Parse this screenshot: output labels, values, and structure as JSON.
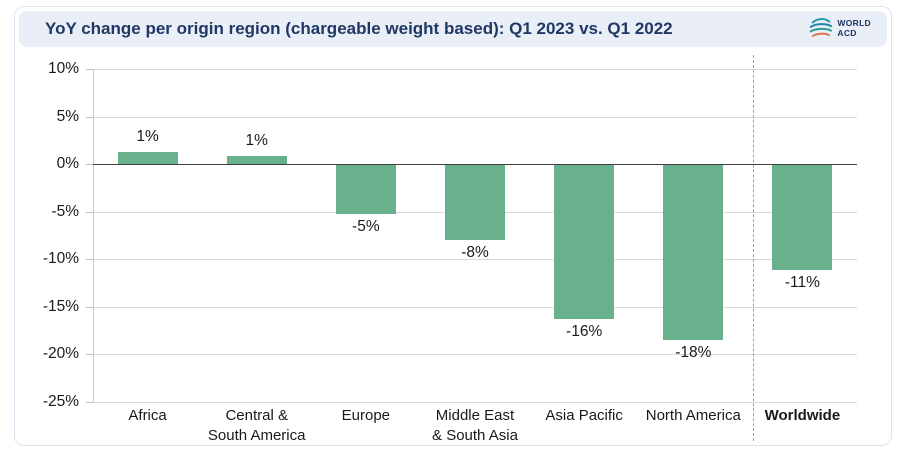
{
  "header": {
    "title": "YoY change per origin region (chargeable weight based): Q1 2023 vs. Q1 2022",
    "logo": {
      "line1": "WORLD",
      "line2": "ACD"
    }
  },
  "chart_data": {
    "type": "bar",
    "title": "YoY change per origin region (chargeable weight based): Q1 2023 vs. Q1 2022",
    "categories": [
      "Africa",
      "Central &\nSouth America",
      "Europe",
      "Middle East\n& South Asia",
      "Asia Pacific",
      "North America",
      "Worldwide"
    ],
    "values": [
      1.3,
      0.8,
      -5.2,
      -7.9,
      -16.2,
      -18.4,
      -11.0
    ],
    "data_labels": [
      "1%",
      "1%",
      "-5%",
      "-8%",
      "-16%",
      "-18%",
      "-11%"
    ],
    "bold_categories": [
      "Worldwide"
    ],
    "y_ticks": [
      {
        "label": "10%",
        "value": 10
      },
      {
        "label": "5%",
        "value": 5
      },
      {
        "label": "0%",
        "value": 0
      },
      {
        "label": "-5%",
        "value": -5
      },
      {
        "label": "-10%",
        "value": -10
      },
      {
        "label": "-15%",
        "value": -15
      },
      {
        "label": "-20%",
        "value": -20
      },
      {
        "label": "-25%",
        "value": -25
      }
    ],
    "ylim": [
      -25,
      10
    ],
    "grid": true,
    "legend": "none",
    "separator_before_category": "Worldwide",
    "colors": {
      "bar": "#69b18d",
      "grid": "#d9d9d9",
      "zero_line": "#404040",
      "separator": "#9aa0a8",
      "title": "#1f3864",
      "header_background": "#e9eef7",
      "label_text": "#1a1a1a"
    }
  }
}
